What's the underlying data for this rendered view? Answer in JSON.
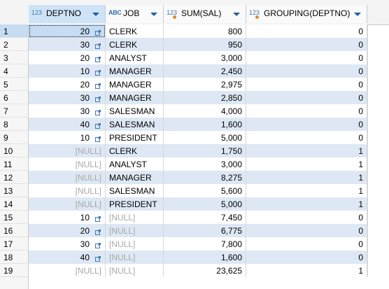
{
  "columns": [
    {
      "type": "123",
      "name": "DEPTNO"
    },
    {
      "type": "ABC",
      "name": "JOB"
    },
    {
      "type": "123",
      "name": "SUM(SAL)"
    },
    {
      "type": "123",
      "name": "GROUPING(DEPTNO)"
    }
  ],
  "rows": [
    {
      "n": "1",
      "deptno": "20",
      "job": "CLERK",
      "sal": "800",
      "grp": "0"
    },
    {
      "n": "2",
      "deptno": "30",
      "job": "CLERK",
      "sal": "950",
      "grp": "0"
    },
    {
      "n": "3",
      "deptno": "20",
      "job": "ANALYST",
      "sal": "3,000",
      "grp": "0"
    },
    {
      "n": "4",
      "deptno": "10",
      "job": "MANAGER",
      "sal": "2,450",
      "grp": "0"
    },
    {
      "n": "5",
      "deptno": "20",
      "job": "MANAGER",
      "sal": "2,975",
      "grp": "0"
    },
    {
      "n": "6",
      "deptno": "30",
      "job": "MANAGER",
      "sal": "2,850",
      "grp": "0"
    },
    {
      "n": "7",
      "deptno": "30",
      "job": "SALESMAN",
      "sal": "4,000",
      "grp": "0"
    },
    {
      "n": "8",
      "deptno": "40",
      "job": "SALESMAN",
      "sal": "1,600",
      "grp": "0"
    },
    {
      "n": "9",
      "deptno": "10",
      "job": "PRESIDENT",
      "sal": "5,000",
      "grp": "0"
    },
    {
      "n": "10",
      "deptno": "[NULL]",
      "job": "CLERK",
      "sal": "1,750",
      "grp": "1"
    },
    {
      "n": "11",
      "deptno": "[NULL]",
      "job": "ANALYST",
      "sal": "3,000",
      "grp": "1"
    },
    {
      "n": "12",
      "deptno": "[NULL]",
      "job": "MANAGER",
      "sal": "8,275",
      "grp": "1"
    },
    {
      "n": "13",
      "deptno": "[NULL]",
      "job": "SALESMAN",
      "sal": "5,600",
      "grp": "1"
    },
    {
      "n": "14",
      "deptno": "[NULL]",
      "job": "PRESIDENT",
      "sal": "5,000",
      "grp": "1"
    },
    {
      "n": "15",
      "deptno": "10",
      "job": "[NULL]",
      "sal": "7,450",
      "grp": "0"
    },
    {
      "n": "16",
      "deptno": "20",
      "job": "[NULL]",
      "sal": "6,775",
      "grp": "0"
    },
    {
      "n": "17",
      "deptno": "30",
      "job": "[NULL]",
      "sal": "7,800",
      "grp": "0"
    },
    {
      "n": "18",
      "deptno": "40",
      "job": "[NULL]",
      "sal": "1,600",
      "grp": "0"
    },
    {
      "n": "19",
      "deptno": "[NULL]",
      "job": "[NULL]",
      "sal": "23,625",
      "grp": "1"
    }
  ],
  "colors": {
    "header_selected": "#cfe3f6",
    "alt_row": "#dde8f4",
    "null_text": "#a8a8a8",
    "accent": "#1f5ea8"
  },
  "icons": {
    "numeric_type": "numeric-type-icon",
    "text_type": "text-type-icon",
    "sort": "dropdown-arrow-icon",
    "fk_link": "link-arrow-icon"
  }
}
